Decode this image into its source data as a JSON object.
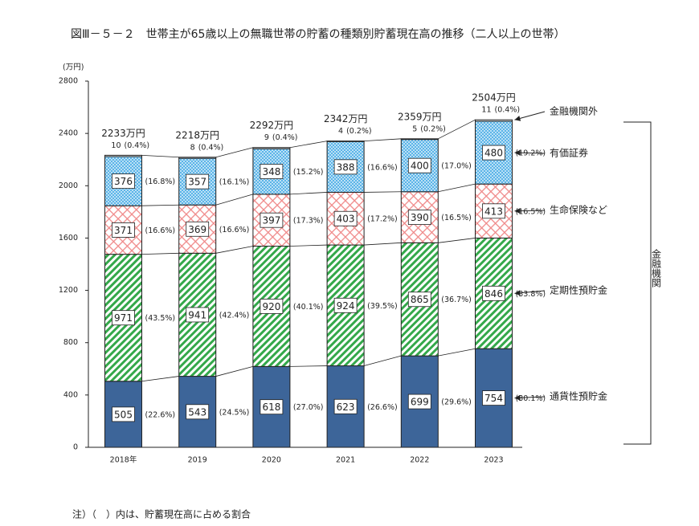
{
  "title": "図Ⅲ－５－２　世帯主が65歳以上の無職世帯の貯蓄の種類別貯蓄現在高の推移（二人以上の世帯）",
  "note": "注）（　）内は、貯蓄現在高に占める割合",
  "bracket_label": "金融機関",
  "chart_data": {
    "type": "stacked_bar",
    "y_label": "(万円)",
    "categories": [
      "2018年",
      "2019",
      "2020",
      "2021",
      "2022",
      "2023"
    ],
    "ylim": [
      0,
      2800
    ],
    "yticks": [
      0,
      400,
      800,
      1200,
      1600,
      2000,
      2400,
      2800
    ],
    "total_labels": [
      "2233万円",
      "2218万円",
      "2292万円",
      "2342万円",
      "2359万円",
      "2504万円"
    ],
    "series": [
      {
        "name": "通貨性預貯金",
        "color": "#3d6599",
        "pattern": "solid",
        "values": [
          505,
          543,
          618,
          623,
          699,
          754
        ],
        "share_labels": [
          "(22.6%)",
          "(24.5%)",
          "(27.0%)",
          "(26.6%)",
          "(29.6%)",
          "(30.1%)"
        ]
      },
      {
        "name": "定期性預貯金",
        "color": "#34a84a",
        "pattern": "hatch",
        "values": [
          971,
          941,
          920,
          924,
          865,
          846
        ],
        "share_labels": [
          "(43.5%)",
          "(42.4%)",
          "(40.1%)",
          "(39.5%)",
          "(36.7%)",
          "(33.8%)"
        ]
      },
      {
        "name": "生命保険など",
        "color": "#f08a8a",
        "pattern": "cross",
        "values": [
          371,
          369,
          397,
          403,
          390,
          413
        ],
        "share_labels": [
          "(16.6%)",
          "(16.6%)",
          "(17.3%)",
          "(17.2%)",
          "(16.5%)",
          "(16.5%)"
        ]
      },
      {
        "name": "有価証券",
        "color": "#5bb4e8",
        "pattern": "dots",
        "values": [
          376,
          357,
          348,
          388,
          400,
          480
        ],
        "share_labels": [
          "(16.8%)",
          "(16.1%)",
          "(15.2%)",
          "(16.6%)",
          "(17.0%)",
          "(19.2%)"
        ]
      },
      {
        "name": "金融機関外",
        "color": "#ffffff",
        "pattern": "solid",
        "values": [
          10,
          8,
          9,
          4,
          5,
          11
        ],
        "share_labels": [
          "(0.4%)",
          "(0.4%)",
          "(0.4%)",
          "(0.2%)",
          "(0.2%)",
          "(0.4%)"
        ]
      }
    ]
  }
}
